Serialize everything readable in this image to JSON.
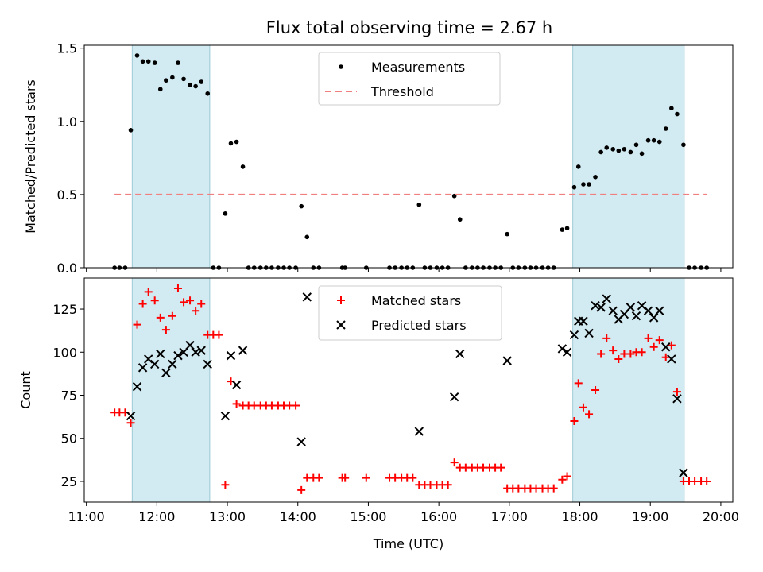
{
  "figure": {
    "title": "Flux total observing time = 2.67 h"
  },
  "chart_data": [
    {
      "type": "scatter",
      "title": "Flux total observing time = 2.67 h",
      "xlabel": "",
      "ylabel": "Matched/Predicted stars",
      "x_unit": "hours UTC",
      "xlim": [
        10.97,
        20.17
      ],
      "ylim": [
        0.0,
        1.52
      ],
      "yticks": [
        0.0,
        0.5,
        1.0,
        1.5
      ],
      "ytick_labels": [
        "0.0",
        "0.5",
        "1.0",
        "1.5"
      ],
      "grid": false,
      "legend_position": "top-center",
      "shaded_intervals": [
        [
          11.65,
          12.75
        ],
        [
          17.9,
          19.48
        ]
      ],
      "shade_color": "#add8e6",
      "series": [
        {
          "name": "Measurements",
          "color": "#000000",
          "marker": "dot",
          "points": [
            [
              11.4,
              0.0
            ],
            [
              11.47,
              0.0
            ],
            [
              11.55,
              0.0
            ],
            [
              11.63,
              0.94
            ],
            [
              11.72,
              1.45
            ],
            [
              11.8,
              1.41
            ],
            [
              11.88,
              1.41
            ],
            [
              11.97,
              1.4
            ],
            [
              12.05,
              1.22
            ],
            [
              12.13,
              1.28
            ],
            [
              12.22,
              1.3
            ],
            [
              12.3,
              1.4
            ],
            [
              12.38,
              1.29
            ],
            [
              12.47,
              1.25
            ],
            [
              12.55,
              1.24
            ],
            [
              12.63,
              1.27
            ],
            [
              12.72,
              1.19
            ],
            [
              12.8,
              0.0
            ],
            [
              12.88,
              0.0
            ],
            [
              12.97,
              0.37
            ],
            [
              13.05,
              0.85
            ],
            [
              13.13,
              0.86
            ],
            [
              13.22,
              0.69
            ],
            [
              13.3,
              0.0
            ],
            [
              13.38,
              0.0
            ],
            [
              13.47,
              0.0
            ],
            [
              13.55,
              0.0
            ],
            [
              13.63,
              0.0
            ],
            [
              13.72,
              0.0
            ],
            [
              13.8,
              0.0
            ],
            [
              13.88,
              0.0
            ],
            [
              13.97,
              0.0
            ],
            [
              14.05,
              0.42
            ],
            [
              14.13,
              0.21
            ],
            [
              14.22,
              0.0
            ],
            [
              14.3,
              0.0
            ],
            [
              14.63,
              0.0
            ],
            [
              14.67,
              0.0
            ],
            [
              14.97,
              0.0
            ],
            [
              15.3,
              0.0
            ],
            [
              15.38,
              0.0
            ],
            [
              15.47,
              0.0
            ],
            [
              15.55,
              0.0
            ],
            [
              15.63,
              0.0
            ],
            [
              15.72,
              0.43
            ],
            [
              15.8,
              0.0
            ],
            [
              15.88,
              0.0
            ],
            [
              15.97,
              0.0
            ],
            [
              16.05,
              0.0
            ],
            [
              16.13,
              0.0
            ],
            [
              16.22,
              0.49
            ],
            [
              16.3,
              0.33
            ],
            [
              16.38,
              0.0
            ],
            [
              16.47,
              0.0
            ],
            [
              16.55,
              0.0
            ],
            [
              16.63,
              0.0
            ],
            [
              16.72,
              0.0
            ],
            [
              16.8,
              0.0
            ],
            [
              16.88,
              0.0
            ],
            [
              16.97,
              0.23
            ],
            [
              17.05,
              0.0
            ],
            [
              17.13,
              0.0
            ],
            [
              17.22,
              0.0
            ],
            [
              17.3,
              0.0
            ],
            [
              17.38,
              0.0
            ],
            [
              17.47,
              0.0
            ],
            [
              17.55,
              0.0
            ],
            [
              17.63,
              0.0
            ],
            [
              17.75,
              0.26
            ],
            [
              17.82,
              0.27
            ],
            [
              17.92,
              0.55
            ],
            [
              17.98,
              0.69
            ],
            [
              18.05,
              0.57
            ],
            [
              18.13,
              0.57
            ],
            [
              18.22,
              0.62
            ],
            [
              18.3,
              0.79
            ],
            [
              18.38,
              0.82
            ],
            [
              18.47,
              0.81
            ],
            [
              18.55,
              0.8
            ],
            [
              18.63,
              0.81
            ],
            [
              18.72,
              0.79
            ],
            [
              18.8,
              0.84
            ],
            [
              18.88,
              0.78
            ],
            [
              18.97,
              0.87
            ],
            [
              19.05,
              0.87
            ],
            [
              19.13,
              0.86
            ],
            [
              19.22,
              0.95
            ],
            [
              19.3,
              1.09
            ],
            [
              19.38,
              1.05
            ],
            [
              19.47,
              0.84
            ],
            [
              19.55,
              0.0
            ],
            [
              19.63,
              0.0
            ],
            [
              19.72,
              0.0
            ],
            [
              19.8,
              0.0
            ]
          ]
        },
        {
          "name": "Threshold",
          "color": "#f08080",
          "marker": "dashed-line",
          "points": [
            [
              11.4,
              0.5
            ],
            [
              19.8,
              0.5
            ]
          ]
        }
      ]
    },
    {
      "type": "scatter",
      "title": "",
      "xlabel": "Time (UTC)",
      "ylabel": "Count",
      "x_unit": "hours UTC",
      "xlim": [
        10.97,
        20.17
      ],
      "ylim": [
        13,
        143
      ],
      "yticks": [
        25,
        50,
        75,
        100,
        125
      ],
      "ytick_labels": [
        "25",
        "50",
        "75",
        "100",
        "125"
      ],
      "xticks": [
        11,
        12,
        13,
        14,
        15,
        16,
        17,
        18,
        19,
        20
      ],
      "xtick_labels": [
        "11:00",
        "12:00",
        "13:00",
        "14:00",
        "15:00",
        "16:00",
        "17:00",
        "18:00",
        "19:00",
        "20:00"
      ],
      "grid": false,
      "legend_position": "top-center",
      "shaded_intervals": [
        [
          11.65,
          12.75
        ],
        [
          17.9,
          19.48
        ]
      ],
      "shade_color": "#add8e6",
      "series": [
        {
          "name": "Matched stars",
          "color": "#ff0000",
          "marker": "plus",
          "points": [
            [
              11.4,
              65
            ],
            [
              11.47,
              65
            ],
            [
              11.55,
              65
            ],
            [
              11.63,
              59
            ],
            [
              11.72,
              116
            ],
            [
              11.8,
              128
            ],
            [
              11.88,
              135
            ],
            [
              11.97,
              130
            ],
            [
              12.05,
              120
            ],
            [
              12.13,
              113
            ],
            [
              12.22,
              121
            ],
            [
              12.3,
              137
            ],
            [
              12.38,
              129
            ],
            [
              12.47,
              130
            ],
            [
              12.55,
              124
            ],
            [
              12.63,
              128
            ],
            [
              12.72,
              110
            ],
            [
              12.8,
              110
            ],
            [
              12.88,
              110
            ],
            [
              12.97,
              23
            ],
            [
              13.05,
              83
            ],
            [
              13.13,
              70
            ],
            [
              13.22,
              69
            ],
            [
              13.3,
              69
            ],
            [
              13.38,
              69
            ],
            [
              13.47,
              69
            ],
            [
              13.55,
              69
            ],
            [
              13.63,
              69
            ],
            [
              13.72,
              69
            ],
            [
              13.8,
              69
            ],
            [
              13.88,
              69
            ],
            [
              13.97,
              69
            ],
            [
              14.05,
              20
            ],
            [
              14.13,
              27
            ],
            [
              14.22,
              27
            ],
            [
              14.3,
              27
            ],
            [
              14.63,
              27
            ],
            [
              14.67,
              27
            ],
            [
              14.97,
              27
            ],
            [
              15.3,
              27
            ],
            [
              15.38,
              27
            ],
            [
              15.47,
              27
            ],
            [
              15.55,
              27
            ],
            [
              15.63,
              27
            ],
            [
              15.72,
              23
            ],
            [
              15.8,
              23
            ],
            [
              15.88,
              23
            ],
            [
              15.97,
              23
            ],
            [
              16.05,
              23
            ],
            [
              16.13,
              23
            ],
            [
              16.22,
              36
            ],
            [
              16.3,
              33
            ],
            [
              16.38,
              33
            ],
            [
              16.47,
              33
            ],
            [
              16.55,
              33
            ],
            [
              16.63,
              33
            ],
            [
              16.72,
              33
            ],
            [
              16.8,
              33
            ],
            [
              16.88,
              33
            ],
            [
              16.97,
              21
            ],
            [
              17.05,
              21
            ],
            [
              17.13,
              21
            ],
            [
              17.22,
              21
            ],
            [
              17.3,
              21
            ],
            [
              17.38,
              21
            ],
            [
              17.47,
              21
            ],
            [
              17.55,
              21
            ],
            [
              17.63,
              21
            ],
            [
              17.75,
              26
            ],
            [
              17.82,
              28
            ],
            [
              17.92,
              60
            ],
            [
              17.98,
              82
            ],
            [
              18.05,
              68
            ],
            [
              18.13,
              64
            ],
            [
              18.22,
              78
            ],
            [
              18.3,
              99
            ],
            [
              18.38,
              108
            ],
            [
              18.47,
              101
            ],
            [
              18.55,
              96
            ],
            [
              18.63,
              99
            ],
            [
              18.72,
              99
            ],
            [
              18.8,
              100
            ],
            [
              18.88,
              100
            ],
            [
              18.97,
              108
            ],
            [
              19.05,
              103
            ],
            [
              19.13,
              107
            ],
            [
              19.22,
              97
            ],
            [
              19.3,
              104
            ],
            [
              19.38,
              77
            ],
            [
              19.47,
              25
            ],
            [
              19.55,
              25
            ],
            [
              19.63,
              25
            ],
            [
              19.72,
              25
            ],
            [
              19.8,
              25
            ]
          ]
        },
        {
          "name": "Predicted stars",
          "color": "#000000",
          "marker": "x",
          "points": [
            [
              11.63,
              63
            ],
            [
              11.72,
              80
            ],
            [
              11.8,
              91
            ],
            [
              11.88,
              96
            ],
            [
              11.97,
              93
            ],
            [
              12.05,
              99
            ],
            [
              12.13,
              88
            ],
            [
              12.22,
              93
            ],
            [
              12.3,
              98
            ],
            [
              12.38,
              100
            ],
            [
              12.47,
              104
            ],
            [
              12.55,
              100
            ],
            [
              12.63,
              101
            ],
            [
              12.72,
              93
            ],
            [
              12.97,
              63
            ],
            [
              13.05,
              98
            ],
            [
              13.13,
              81
            ],
            [
              13.22,
              101
            ],
            [
              14.05,
              48
            ],
            [
              14.13,
              132
            ],
            [
              15.72,
              54
            ],
            [
              16.22,
              74
            ],
            [
              16.3,
              99
            ],
            [
              16.97,
              95
            ],
            [
              17.75,
              102
            ],
            [
              17.82,
              100
            ],
            [
              17.92,
              110
            ],
            [
              17.98,
              118
            ],
            [
              18.05,
              118
            ],
            [
              18.13,
              111
            ],
            [
              18.22,
              127
            ],
            [
              18.3,
              126
            ],
            [
              18.38,
              131
            ],
            [
              18.47,
              124
            ],
            [
              18.55,
              119
            ],
            [
              18.63,
              122
            ],
            [
              18.72,
              126
            ],
            [
              18.8,
              121
            ],
            [
              18.88,
              127
            ],
            [
              18.97,
              124
            ],
            [
              19.05,
              120
            ],
            [
              19.13,
              124
            ],
            [
              19.22,
              103
            ],
            [
              19.3,
              96
            ],
            [
              19.38,
              73
            ],
            [
              19.47,
              30
            ]
          ]
        }
      ]
    }
  ]
}
